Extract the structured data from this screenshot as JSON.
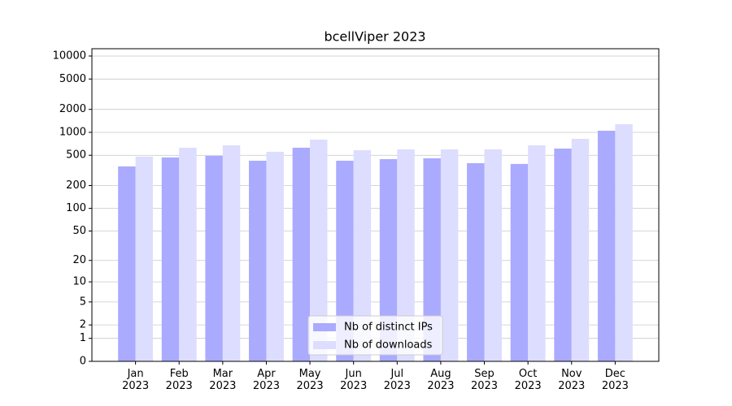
{
  "chart_data": {
    "type": "bar",
    "title": "bcellViper 2023",
    "categories": [
      "Jan\n2023",
      "Feb\n2023",
      "Mar\n2023",
      "Apr\n2023",
      "May\n2023",
      "Jun\n2023",
      "Jul\n2023",
      "Aug\n2023",
      "Sep\n2023",
      "Oct\n2023",
      "Nov\n2023",
      "Dec\n2023"
    ],
    "series": [
      {
        "name": "Nb of distinct IPs",
        "color": "#aaaaff",
        "values": [
          357,
          468,
          491,
          424,
          628,
          424,
          445,
          457,
          394,
          385,
          612,
          1050
        ]
      },
      {
        "name": "Nb of downloads",
        "color": "#ddddff",
        "values": [
          480,
          628,
          676,
          556,
          802,
          583,
          598,
          598,
          598,
          676,
          822,
          1277
        ]
      }
    ],
    "yscale": "log1p",
    "ylim": [
      0,
      12470
    ],
    "yticks": [
      0,
      1,
      2,
      5,
      10,
      20,
      50,
      100,
      200,
      500,
      1000,
      2000,
      5000,
      10000
    ],
    "grid": true,
    "legend": "lower center"
  }
}
